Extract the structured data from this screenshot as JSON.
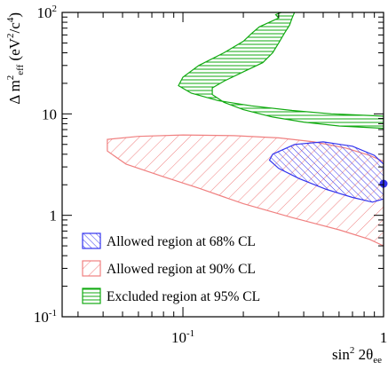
{
  "chart_data": {
    "type": "area",
    "title": "",
    "xlabel": {
      "base": "sin",
      "sup": "2",
      "theta": " 2θ",
      "sub": "ee"
    },
    "ylabel": {
      "pre": "Δ m",
      "sup": "2",
      "sub": "eff",
      "unit_open": " (eV",
      "unit_sup": "2",
      "unit_mid": "/c",
      "unit_sup2": "4",
      "unit_close": ")"
    },
    "x_scale": "log",
    "y_scale": "log",
    "xlim": [
      0.025,
      1
    ],
    "ylim": [
      0.1,
      100
    ],
    "x_ticks": [
      {
        "value": 0.1,
        "base": "10",
        "exp": "-1"
      },
      {
        "value": 1,
        "base": "1",
        "exp": ""
      }
    ],
    "y_ticks": [
      {
        "value": 0.1,
        "base": "10",
        "exp": "-1"
      },
      {
        "value": 1,
        "base": "1",
        "exp": ""
      },
      {
        "value": 10,
        "base": "10",
        "exp": ""
      },
      {
        "value": 100,
        "base": "10",
        "exp": "2"
      }
    ],
    "grid": false,
    "legend_position": "bottom-left",
    "best_fit_point": {
      "x": 1.0,
      "y": 2.05,
      "color": "#3333ee"
    },
    "series": [
      {
        "name": "Excluded region at 95% CL",
        "style": "horizontal-hatch",
        "color": "#11aa11",
        "fill_color": "#11aa11",
        "boundary": [
          [
            0.31,
            100
          ],
          [
            0.29,
            95
          ],
          [
            0.3,
            88
          ],
          [
            0.27,
            80
          ],
          [
            0.24,
            72
          ],
          [
            0.22,
            62
          ],
          [
            0.2,
            52
          ],
          [
            0.16,
            40
          ],
          [
            0.12,
            30
          ],
          [
            0.1,
            23
          ],
          [
            0.095,
            19
          ],
          [
            0.11,
            16
          ],
          [
            0.15,
            13.5
          ],
          [
            0.22,
            12
          ],
          [
            0.35,
            10.8
          ],
          [
            0.55,
            10
          ],
          [
            1.0,
            9.5
          ],
          [
            1.0,
            7.2
          ],
          [
            0.6,
            7.6
          ],
          [
            0.4,
            8.3
          ],
          [
            0.28,
            9.3
          ],
          [
            0.2,
            11
          ],
          [
            0.16,
            13
          ],
          [
            0.14,
            15.5
          ],
          [
            0.14,
            18
          ],
          [
            0.16,
            21
          ],
          [
            0.2,
            26
          ],
          [
            0.25,
            32
          ],
          [
            0.28,
            40
          ],
          [
            0.3,
            50
          ],
          [
            0.32,
            62
          ],
          [
            0.34,
            75
          ],
          [
            0.35,
            88
          ],
          [
            0.36,
            100
          ]
        ]
      },
      {
        "name": "Allowed region at 90% CL",
        "style": "diagonal-hatch",
        "color": "#f08080",
        "fill_color": "#f08080",
        "boundary": [
          [
            0.042,
            5.6
          ],
          [
            0.06,
            6.0
          ],
          [
            0.1,
            6.2
          ],
          [
            0.18,
            6.1
          ],
          [
            0.3,
            5.8
          ],
          [
            0.45,
            5.3
          ],
          [
            0.65,
            4.6
          ],
          [
            0.85,
            3.9
          ],
          [
            1.0,
            3.4
          ],
          [
            1.0,
            0.5
          ],
          [
            0.85,
            0.58
          ],
          [
            0.6,
            0.72
          ],
          [
            0.35,
            0.95
          ],
          [
            0.2,
            1.3
          ],
          [
            0.12,
            1.85
          ],
          [
            0.08,
            2.4
          ],
          [
            0.052,
            3.2
          ],
          [
            0.042,
            4.3
          ]
        ]
      },
      {
        "name": "Allowed region at 68% CL",
        "style": "diagonal-hatch",
        "color": "#3333ee",
        "fill_color": "#3333ee",
        "boundary": [
          [
            0.28,
            4.0
          ],
          [
            0.36,
            5.0
          ],
          [
            0.5,
            5.3
          ],
          [
            0.7,
            4.8
          ],
          [
            0.9,
            3.9
          ],
          [
            1.0,
            3.2
          ],
          [
            1.0,
            1.45
          ],
          [
            0.88,
            1.35
          ],
          [
            0.7,
            1.5
          ],
          [
            0.52,
            1.8
          ],
          [
            0.38,
            2.3
          ],
          [
            0.3,
            2.9
          ],
          [
            0.27,
            3.5
          ]
        ]
      }
    ]
  }
}
